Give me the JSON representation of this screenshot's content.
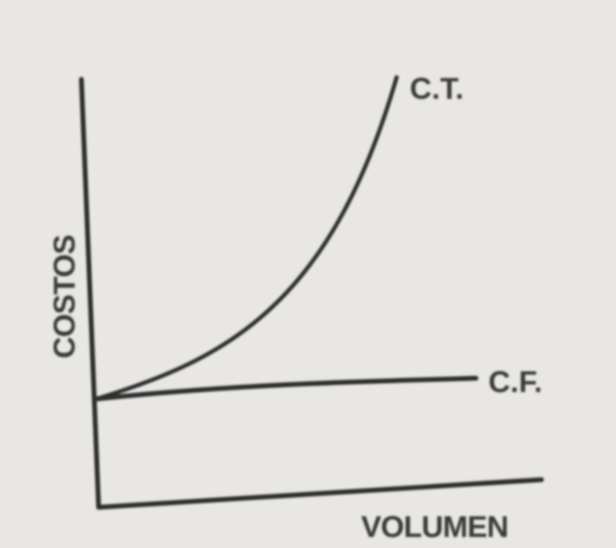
{
  "axes": {
    "y_label": "COSTOS",
    "x_label": "VOLUMEN"
  },
  "curves": [
    {
      "label": "C.T."
    },
    {
      "label": "C.F."
    }
  ]
}
